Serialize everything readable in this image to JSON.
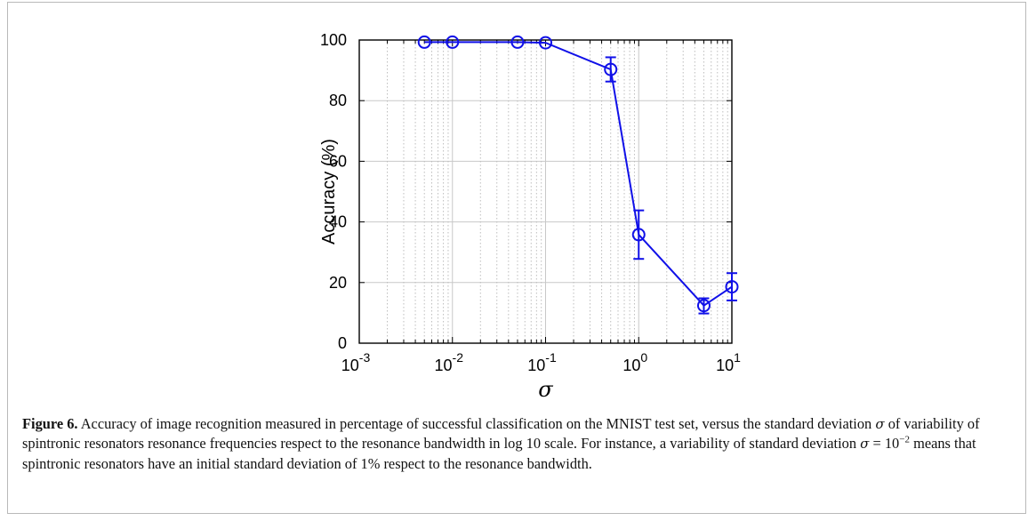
{
  "chart_data": {
    "type": "line",
    "title": "",
    "xlabel": "σ",
    "ylabel": "Accuracy (%)",
    "xscale": "log",
    "xlim": [
      0.001,
      10
    ],
    "ylim": [
      0,
      100
    ],
    "grid": true,
    "x_ticks": [
      {
        "value": 0.001,
        "base": "10",
        "exp": "-3"
      },
      {
        "value": 0.01,
        "base": "10",
        "exp": "-2"
      },
      {
        "value": 0.1,
        "base": "10",
        "exp": "-1"
      },
      {
        "value": 1,
        "base": "10",
        "exp": "0"
      },
      {
        "value": 10,
        "base": "10",
        "exp": "1"
      }
    ],
    "y_ticks": [
      "0",
      "20",
      "40",
      "60",
      "80",
      "100"
    ],
    "series": [
      {
        "color": "#1010e8",
        "marker": "circle",
        "points": [
          {
            "x": 0.005,
            "y": 99.3,
            "err_low": 0,
            "err_high": 0
          },
          {
            "x": 0.01,
            "y": 99.3,
            "err_low": 0,
            "err_high": 0
          },
          {
            "x": 0.05,
            "y": 99.3,
            "err_low": 0,
            "err_high": 0
          },
          {
            "x": 0.1,
            "y": 99.1,
            "err_low": 0,
            "err_high": 0
          },
          {
            "x": 0.5,
            "y": 90.3,
            "err_low": 4,
            "err_high": 4
          },
          {
            "x": 1,
            "y": 35.8,
            "err_low": 8,
            "err_high": 8
          },
          {
            "x": 5,
            "y": 12.4,
            "err_low": 2.6,
            "err_high": 2.4
          },
          {
            "x": 10,
            "y": 18.6,
            "err_low": 4.5,
            "err_high": 4.5
          }
        ]
      }
    ]
  },
  "caption": {
    "label": "Figure 6.",
    "part1": " Accuracy of image recognition measured in percentage of successful classification on the MNIST test set, versus the standard deviation ",
    "sigma1": "σ",
    "part2": " of variability of spintronic resonators resonance frequencies respect to the resonance bandwidth in log 10 scale. For instance, a variability of standard deviation ",
    "sigma2": "σ",
    "equals": " = 10",
    "exponent": "−2",
    "part3": " means that spintronic resonators have an initial standard deviation of 1% respect to the resonance bandwidth."
  }
}
